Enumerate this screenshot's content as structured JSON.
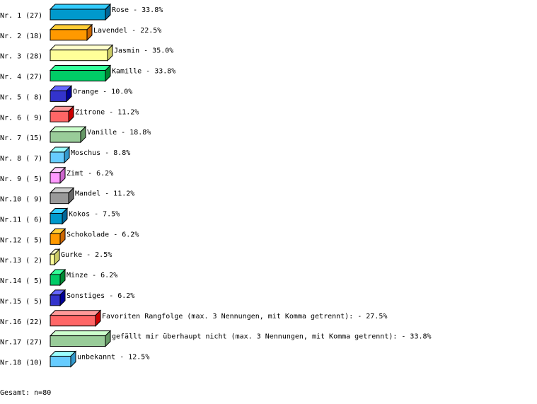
{
  "chart_data": {
    "type": "bar",
    "orientation": "horizontal",
    "style": "3d",
    "unit": "%",
    "rows": [
      {
        "rank": "Nr. 1",
        "count": 27,
        "label": "Rose",
        "value": 33.8,
        "colors": [
          "#0099cc",
          "#33ccff",
          "#006699"
        ]
      },
      {
        "rank": "Nr. 2",
        "count": 18,
        "label": "Lavendel",
        "value": 22.5,
        "colors": [
          "#ff9900",
          "#ffcc33",
          "#cc6600"
        ]
      },
      {
        "rank": "Nr. 3",
        "count": 28,
        "label": "Jasmin",
        "value": 35.0,
        "colors": [
          "#ffff99",
          "#ffffcc",
          "#cccc66"
        ]
      },
      {
        "rank": "Nr. 4",
        "count": 27,
        "label": "Kamille",
        "value": 33.8,
        "colors": [
          "#00cc66",
          "#33ff99",
          "#008833"
        ]
      },
      {
        "rank": "Nr. 5",
        "count": 8,
        "label": "Orange",
        "value": 10.0,
        "colors": [
          "#3333cc",
          "#6666ff",
          "#000099"
        ]
      },
      {
        "rank": "Nr. 6",
        "count": 9,
        "label": "Zitrone",
        "value": 11.2,
        "colors": [
          "#ff6666",
          "#ff9999",
          "#cc0000"
        ]
      },
      {
        "rank": "Nr. 7",
        "count": 15,
        "label": "Vanille",
        "value": 18.8,
        "colors": [
          "#99cc99",
          "#ccffcc",
          "#669966"
        ]
      },
      {
        "rank": "Nr. 8",
        "count": 7,
        "label": "Moschus",
        "value": 8.8,
        "colors": [
          "#66ccff",
          "#99ffff",
          "#3399cc"
        ]
      },
      {
        "rank": "Nr. 9",
        "count": 5,
        "label": "Zimt",
        "value": 6.2,
        "colors": [
          "#ff99ff",
          "#ffccff",
          "#cc66cc"
        ]
      },
      {
        "rank": "Nr.10",
        "count": 9,
        "label": "Mandel",
        "value": 11.2,
        "colors": [
          "#999999",
          "#cccccc",
          "#666666"
        ]
      },
      {
        "rank": "Nr.11",
        "count": 6,
        "label": "Kokos",
        "value": 7.5,
        "colors": [
          "#0099cc",
          "#33ccff",
          "#006699"
        ]
      },
      {
        "rank": "Nr.12",
        "count": 5,
        "label": "Schokolade",
        "value": 6.2,
        "colors": [
          "#ff9900",
          "#ffcc33",
          "#cc6600"
        ]
      },
      {
        "rank": "Nr.13",
        "count": 2,
        "label": "Gurke",
        "value": 2.5,
        "colors": [
          "#ffff99",
          "#ffffcc",
          "#cccc66"
        ]
      },
      {
        "rank": "Nr.14",
        "count": 5,
        "label": "Minze",
        "value": 6.2,
        "colors": [
          "#00cc66",
          "#33ff99",
          "#008833"
        ]
      },
      {
        "rank": "Nr.15",
        "count": 5,
        "label": "Sonstiges",
        "value": 6.2,
        "colors": [
          "#3333cc",
          "#6666ff",
          "#000099"
        ]
      },
      {
        "rank": "Nr.16",
        "count": 22,
        "label": "Favoriten Rangfolge (max. 3 Nennungen, mit Komma getrennt):",
        "value": 27.5,
        "colors": [
          "#ff6666",
          "#ff9999",
          "#cc0000"
        ]
      },
      {
        "rank": "Nr.17",
        "count": 27,
        "label": "gefällt mir überhaupt nicht (max. 3 Nennungen, mit Komma getrennt):",
        "value": 33.8,
        "colors": [
          "#99cc99",
          "#ccffcc",
          "#669966"
        ]
      },
      {
        "rank": "Nr.18",
        "count": 10,
        "label": "unbekannt",
        "value": 12.5,
        "colors": [
          "#66ccff",
          "#99ffff",
          "#3399cc"
        ]
      }
    ],
    "total": "Gesamt: n=80"
  }
}
